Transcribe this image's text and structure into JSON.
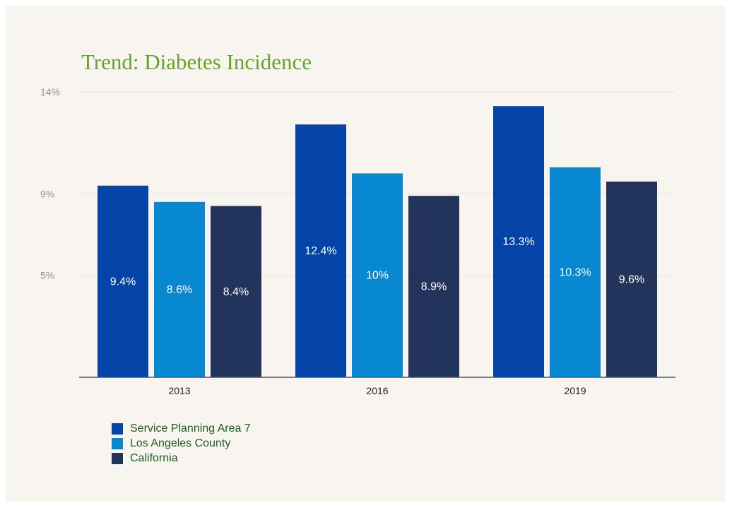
{
  "colors": {
    "background": "#f8f4ef",
    "title": "#64a32e",
    "legend_text": "#1f5e1f",
    "grid": "#e6e2dd",
    "axis": "#555555"
  },
  "chart_data": {
    "type": "bar",
    "title": "Trend: Diabetes Incidence",
    "xlabel": "",
    "ylabel": "",
    "categories": [
      "2013",
      "2016",
      "2019"
    ],
    "y_ticks": [
      {
        "value": 5,
        "label": "5%"
      },
      {
        "value": 9,
        "label": "9%"
      },
      {
        "value": 14,
        "label": "14%"
      }
    ],
    "ylim": [
      0,
      14
    ],
    "grid": true,
    "legend_position": "bottom-left",
    "series": [
      {
        "name": "Service Planning Area 7",
        "color": "#0443a7",
        "values": [
          9.4,
          12.4,
          13.3
        ],
        "labels": [
          "9.4%",
          "12.4%",
          "13.3%"
        ]
      },
      {
        "name": "Los Angeles County",
        "color": "#0788d0",
        "values": [
          8.6,
          10,
          10.3
        ],
        "labels": [
          "8.6%",
          "10%",
          "10.3%"
        ]
      },
      {
        "name": "California",
        "color": "#23345c",
        "values": [
          8.4,
          8.9,
          9.6
        ],
        "labels": [
          "8.4%",
          "8.9%",
          "9.6%"
        ]
      }
    ]
  }
}
